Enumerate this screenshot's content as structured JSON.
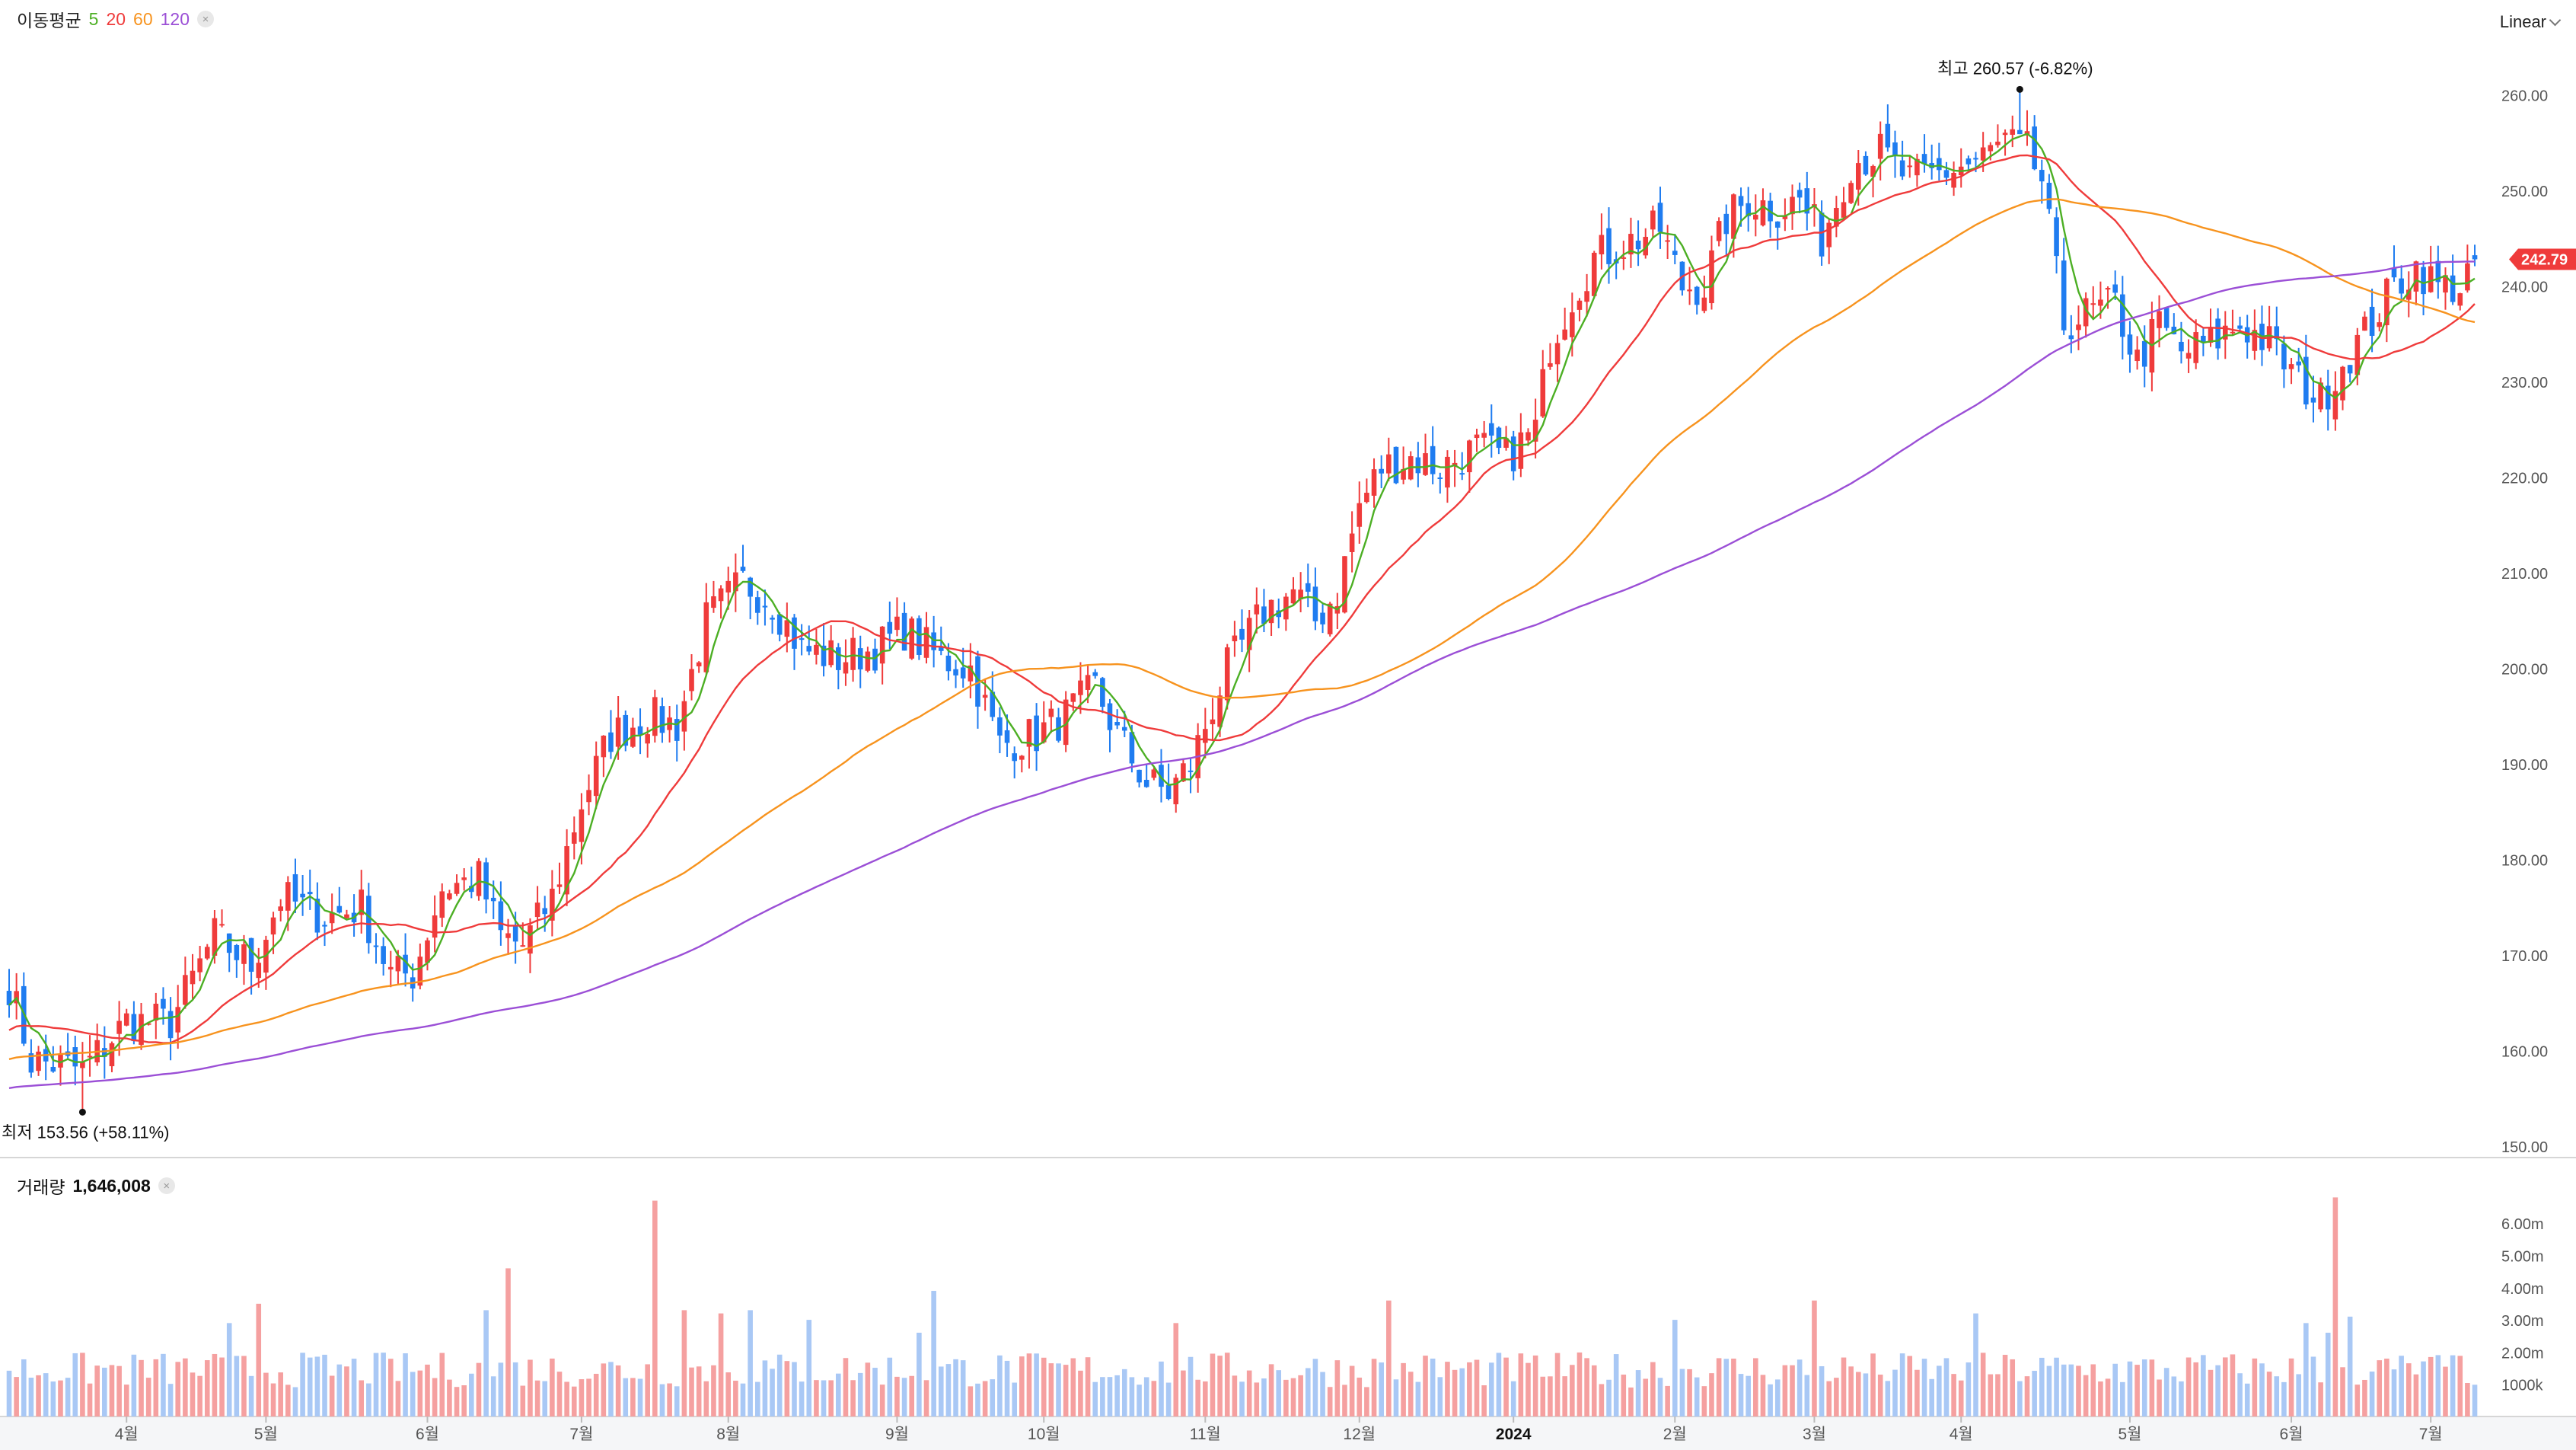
{
  "header": {
    "ma_label": "이동평균",
    "ma_periods": [
      {
        "label": "5",
        "color": "#4caf24"
      },
      {
        "label": "20",
        "color": "#ef3b3b"
      },
      {
        "label": "60",
        "color": "#f7931e"
      },
      {
        "label": "120",
        "color": "#9b4fd6"
      }
    ],
    "close_symbol": "×",
    "scale_mode": "Linear"
  },
  "volume_header": {
    "label": "거래량",
    "value": "1,646,008"
  },
  "colors": {
    "up": "#ef3b3b",
    "down": "#1f7cf0",
    "up_volume": "#f5a0a0",
    "down_volume": "#a9c8f5",
    "ma5": "#4caf24",
    "ma20": "#ef3b3b",
    "ma60": "#f7931e",
    "ma120": "#9b4fd6",
    "price_tag": "#ef3b3b"
  },
  "chart_data": {
    "type": "candlestick",
    "x_axis": {
      "labels": [
        "4월",
        "5월",
        "6월",
        "7월",
        "8월",
        "9월",
        "10월",
        "11월",
        "12월",
        "2024",
        "2월",
        "3월",
        "4월",
        "5월",
        "6월",
        "7월"
      ],
      "label_sessions": [
        16,
        35,
        57,
        78,
        98,
        121,
        141,
        163,
        184,
        205,
        227,
        246,
        266,
        289,
        311,
        330
      ]
    },
    "price_axis": {
      "ticks": [
        "260.00",
        "250.00",
        "240.00",
        "230.00",
        "220.00",
        "210.00",
        "200.00",
        "190.00",
        "180.00",
        "170.00",
        "160.00",
        "150.00"
      ],
      "range": [
        150,
        262
      ]
    },
    "volume_axis": {
      "ticks": [
        "6.00m",
        "5.00m",
        "4.00m",
        "3.00m",
        "2.00m",
        "1000k"
      ],
      "range": [
        0,
        7
      ]
    },
    "high_marker": {
      "label": "최고",
      "value": "260.57 (-6.82%)",
      "price": 260.57,
      "session": 274
    },
    "low_marker": {
      "label": "최저",
      "value": "153.56 (+58.11%)",
      "price": 153.56,
      "session": 10
    },
    "last_price": {
      "value": "242.79",
      "price": 242.79
    },
    "session_count": 337,
    "price_anchors": [
      [
        0,
        167
      ],
      [
        3,
        159
      ],
      [
        10,
        158
      ],
      [
        16,
        163
      ],
      [
        22,
        163
      ],
      [
        28,
        172
      ],
      [
        33,
        169
      ],
      [
        37,
        176
      ],
      [
        43,
        174
      ],
      [
        48,
        175
      ],
      [
        52,
        168
      ],
      [
        55,
        168
      ],
      [
        59,
        177
      ],
      [
        64,
        178
      ],
      [
        67,
        172
      ],
      [
        70,
        171
      ],
      [
        74,
        176
      ],
      [
        78,
        186
      ],
      [
        82,
        193
      ],
      [
        87,
        195
      ],
      [
        91,
        194
      ],
      [
        95,
        205
      ],
      [
        100,
        209
      ],
      [
        104,
        207
      ],
      [
        108,
        202
      ],
      [
        113,
        201
      ],
      [
        118,
        202
      ],
      [
        122,
        204
      ],
      [
        127,
        201
      ],
      [
        131,
        200
      ],
      [
        135,
        192
      ],
      [
        140,
        193
      ],
      [
        144,
        195
      ],
      [
        148,
        198
      ],
      [
        151,
        193
      ],
      [
        155,
        188
      ],
      [
        158,
        187
      ],
      [
        161,
        190
      ],
      [
        163,
        194
      ],
      [
        166,
        200
      ],
      [
        171,
        206
      ],
      [
        175,
        208
      ],
      [
        178,
        205
      ],
      [
        181,
        208
      ],
      [
        184,
        217
      ],
      [
        187,
        221
      ],
      [
        191,
        222
      ],
      [
        195,
        221
      ],
      [
        200,
        223
      ],
      [
        204,
        222
      ],
      [
        208,
        225
      ],
      [
        210,
        234
      ],
      [
        213,
        239
      ],
      [
        216,
        243
      ],
      [
        219,
        244
      ],
      [
        222,
        245
      ],
      [
        225,
        246
      ],
      [
        228,
        240
      ],
      [
        231,
        240
      ],
      [
        234,
        247
      ],
      [
        237,
        249
      ],
      [
        241,
        248
      ],
      [
        244,
        249
      ],
      [
        247,
        245
      ],
      [
        251,
        253
      ],
      [
        255,
        254
      ],
      [
        259,
        251
      ],
      [
        264,
        252
      ],
      [
        268,
        253
      ],
      [
        272,
        255
      ],
      [
        275,
        254
      ],
      [
        277,
        251
      ],
      [
        280,
        236
      ],
      [
        283,
        237
      ],
      [
        287,
        238
      ],
      [
        290,
        232
      ],
      [
        293,
        236
      ],
      [
        296,
        233
      ],
      [
        300,
        234
      ],
      [
        304,
        236
      ],
      [
        308,
        234
      ],
      [
        312,
        230
      ],
      [
        315,
        228
      ],
      [
        318,
        232
      ],
      [
        321,
        235
      ],
      [
        325,
        240
      ],
      [
        328,
        242
      ],
      [
        331,
        240
      ],
      [
        334,
        240
      ],
      [
        336,
        242.79
      ]
    ],
    "volume_spikes": [
      [
        30,
        2.9
      ],
      [
        34,
        3.5
      ],
      [
        65,
        3.3
      ],
      [
        68,
        4.6
      ],
      [
        88,
        6.7
      ],
      [
        92,
        3.3
      ],
      [
        97,
        3.2
      ],
      [
        101,
        3.3
      ],
      [
        109,
        3.0
      ],
      [
        124,
        2.6
      ],
      [
        126,
        3.9
      ],
      [
        159,
        2.9
      ],
      [
        188,
        3.6
      ],
      [
        227,
        3.0
      ],
      [
        246,
        3.6
      ],
      [
        268,
        3.2
      ],
      [
        319,
        3.1
      ],
      [
        316,
        2.6
      ],
      [
        313,
        2.9
      ],
      [
        317,
        6.8
      ],
      [
        333,
        1.9
      ]
    ]
  }
}
